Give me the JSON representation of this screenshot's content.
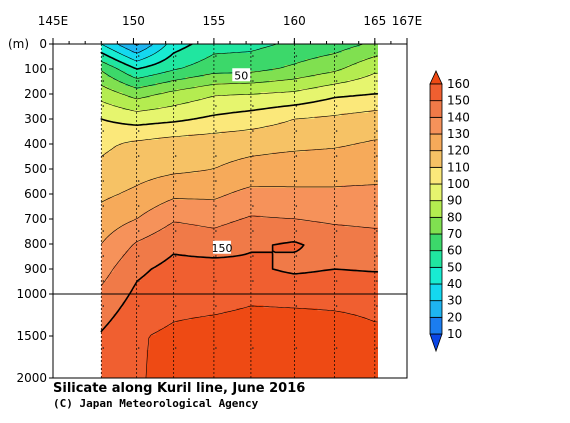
{
  "chart_data": {
    "type": "heatmap",
    "title": "Silicate along Kuril line, June 2016",
    "credit": "(C) Japan Meteorological Agency",
    "variable": "Silicate",
    "x_axis": {
      "range": [
        145,
        167
      ],
      "tick_labels": [
        {
          "value": 145,
          "label": "145E"
        },
        {
          "value": 150,
          "label": "150"
        },
        {
          "value": 155,
          "label": "155"
        },
        {
          "value": 160,
          "label": "160"
        },
        {
          "value": 165,
          "label": "165"
        },
        {
          "value": 167,
          "label": "167E"
        }
      ],
      "data_extent": [
        148,
        165
      ]
    },
    "y_axis": {
      "unit": "(m)",
      "upper_range": [
        0,
        1000
      ],
      "lower_range": [
        1000,
        2000
      ],
      "tick_labels": [
        "0",
        "100",
        "200",
        "300",
        "400",
        "500",
        "600",
        "700",
        "800",
        "900",
        "1000",
        "1500",
        "2000"
      ],
      "tick_values": [
        0,
        100,
        200,
        300,
        400,
        500,
        600,
        700,
        800,
        900,
        1000,
        1500,
        2000
      ]
    },
    "stations_lon": [
      148,
      150.2,
      152.5,
      155,
      157.3,
      160,
      162.5,
      165
    ],
    "depths": [
      0,
      100,
      200,
      300,
      400,
      500,
      600,
      700,
      800,
      900,
      1000,
      1500,
      2000
    ],
    "values": [
      [
        40,
        18,
        45,
        56,
        57,
        62,
        65,
        72
      ],
      [
        69,
        50,
        59,
        66,
        67,
        72,
        78,
        88
      ],
      [
        86,
        76,
        83,
        89,
        90,
        92,
        98,
        100
      ],
      [
        100,
        96,
        98,
        102,
        105,
        110,
        112,
        115
      ],
      [
        108,
        112,
        115,
        116,
        117,
        118,
        119,
        121
      ],
      [
        112,
        116,
        118,
        120,
        123,
        125,
        125,
        125
      ],
      [
        118,
        122,
        128,
        128,
        133,
        132,
        132,
        133
      ],
      [
        124,
        130,
        139,
        137,
        141,
        140,
        138,
        137
      ],
      [
        130,
        141,
        148,
        145,
        149,
        151,
        147,
        145
      ],
      [
        136,
        148,
        153,
        154,
        152,
        148,
        150,
        149
      ],
      [
        142,
        152,
        156,
        156,
        158,
        158,
        158,
        158
      ],
      [
        151,
        159,
        162,
        164,
        165,
        164,
        163,
        161
      ],
      [
        153,
        159,
        163,
        165,
        167,
        164,
        162,
        160
      ]
    ],
    "contour_levels": [
      10,
      20,
      30,
      40,
      50,
      60,
      70,
      80,
      90,
      100,
      110,
      120,
      130,
      140,
      150,
      160
    ],
    "contour_labels": [
      "50",
      "150"
    ],
    "colorbar": {
      "labels": [
        "10",
        "20",
        "30",
        "40",
        "50",
        "60",
        "70",
        "80",
        "90",
        "100",
        "110",
        "120",
        "130",
        "140",
        "150",
        "160"
      ],
      "colors": [
        "#0a46e6",
        "#1b7df0",
        "#1eb4f0",
        "#14d8f0",
        "#18ecd2",
        "#20e6a0",
        "#3cd86a",
        "#80e050",
        "#b4ec50",
        "#e6f56e",
        "#fbe87a",
        "#f6c265",
        "#f6aa5a",
        "#f6925a",
        "#f07a48",
        "#f05f30",
        "#ee4a14"
      ]
    },
    "grid": false
  }
}
